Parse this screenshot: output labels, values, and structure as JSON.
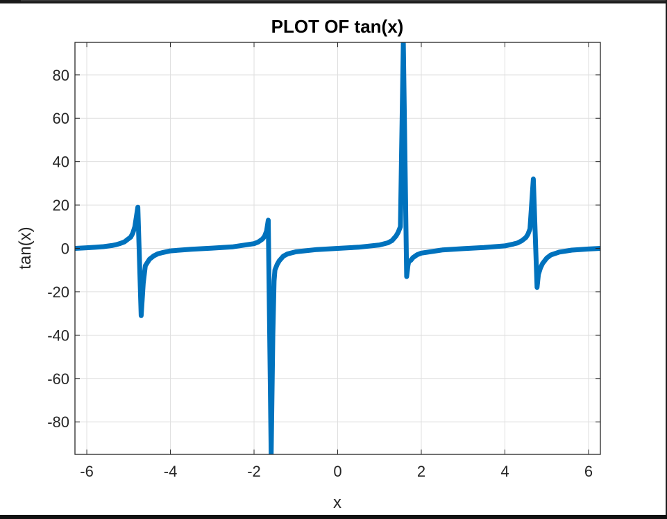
{
  "chart_data": {
    "type": "line",
    "title": "PLOT OF tan(x)",
    "xlabel": "x",
    "ylabel": "tan(x)",
    "xlim": [
      -6.2832,
      6.2832
    ],
    "ylim": [
      -95,
      95
    ],
    "grid": true,
    "x_ticks": [
      -6,
      -4,
      -2,
      0,
      2,
      4,
      6
    ],
    "x_tick_labels": [
      "-6",
      "-4",
      "-2",
      "0",
      "2",
      "4",
      "6"
    ],
    "y_ticks": [
      -80,
      -60,
      -40,
      -20,
      0,
      20,
      40,
      60,
      80
    ],
    "y_tick_labels": [
      "-80",
      "-60",
      "-40",
      "-20",
      "0",
      "20",
      "40",
      "60",
      "80"
    ],
    "series": [
      {
        "color": "#0072BD",
        "x": [
          -6.2832,
          -6.0,
          -5.8,
          -5.6,
          -5.4,
          -5.3,
          -5.2,
          -5.1,
          -5.0,
          -4.95,
          -4.9,
          -4.85,
          -4.78,
          -4.7,
          -4.65,
          -4.6,
          -4.55,
          -4.5,
          -4.4,
          -4.3,
          -4.2,
          -4.0,
          -3.5,
          -3.0,
          -2.5,
          -2.0,
          -1.9,
          -1.8,
          -1.75,
          -1.7,
          -1.66,
          -1.59,
          -1.55,
          -1.52,
          -1.5,
          -1.45,
          -1.4,
          -1.3,
          -1.2,
          -1.0,
          -0.5,
          0.0,
          0.5,
          1.0,
          1.2,
          1.3,
          1.4,
          1.45,
          1.5,
          1.57,
          1.65,
          1.68,
          1.7,
          1.75,
          1.8,
          1.9,
          2.0,
          2.5,
          3.0,
          3.5,
          4.0,
          4.2,
          4.3,
          4.4,
          4.5,
          4.55,
          4.6,
          4.68,
          4.77,
          4.8,
          4.85,
          4.9,
          5.0,
          5.1,
          5.3,
          5.6,
          6.0,
          6.2832
        ],
        "y": [
          0,
          0.29,
          0.52,
          0.81,
          1.32,
          1.71,
          2.27,
          3.01,
          4.5,
          5.2,
          7.0,
          10.0,
          19.0,
          -31.0,
          -16.0,
          -8.0,
          -6.5,
          -5.0,
          -3.5,
          -2.5,
          -2.0,
          -1.16,
          -0.37,
          0.14,
          0.75,
          2.19,
          2.93,
          4.29,
          5.5,
          8.0,
          13.0,
          -95,
          -40,
          -15.0,
          -10.0,
          -7.5,
          -5.8,
          -3.6,
          -2.57,
          -1.56,
          -0.55,
          0,
          0.55,
          1.56,
          2.57,
          3.6,
          5.8,
          7.5,
          10.0,
          95,
          -13.0,
          -8.0,
          -6.0,
          -5.5,
          -4.29,
          -2.93,
          -2.19,
          -0.75,
          -0.14,
          0.37,
          1.16,
          2.0,
          2.5,
          3.5,
          5.0,
          6.5,
          9.0,
          32.0,
          -18.0,
          -12.0,
          -9.0,
          -7.0,
          -4.5,
          -3.01,
          -1.71,
          -0.81,
          -0.29,
          0
        ]
      }
    ]
  }
}
